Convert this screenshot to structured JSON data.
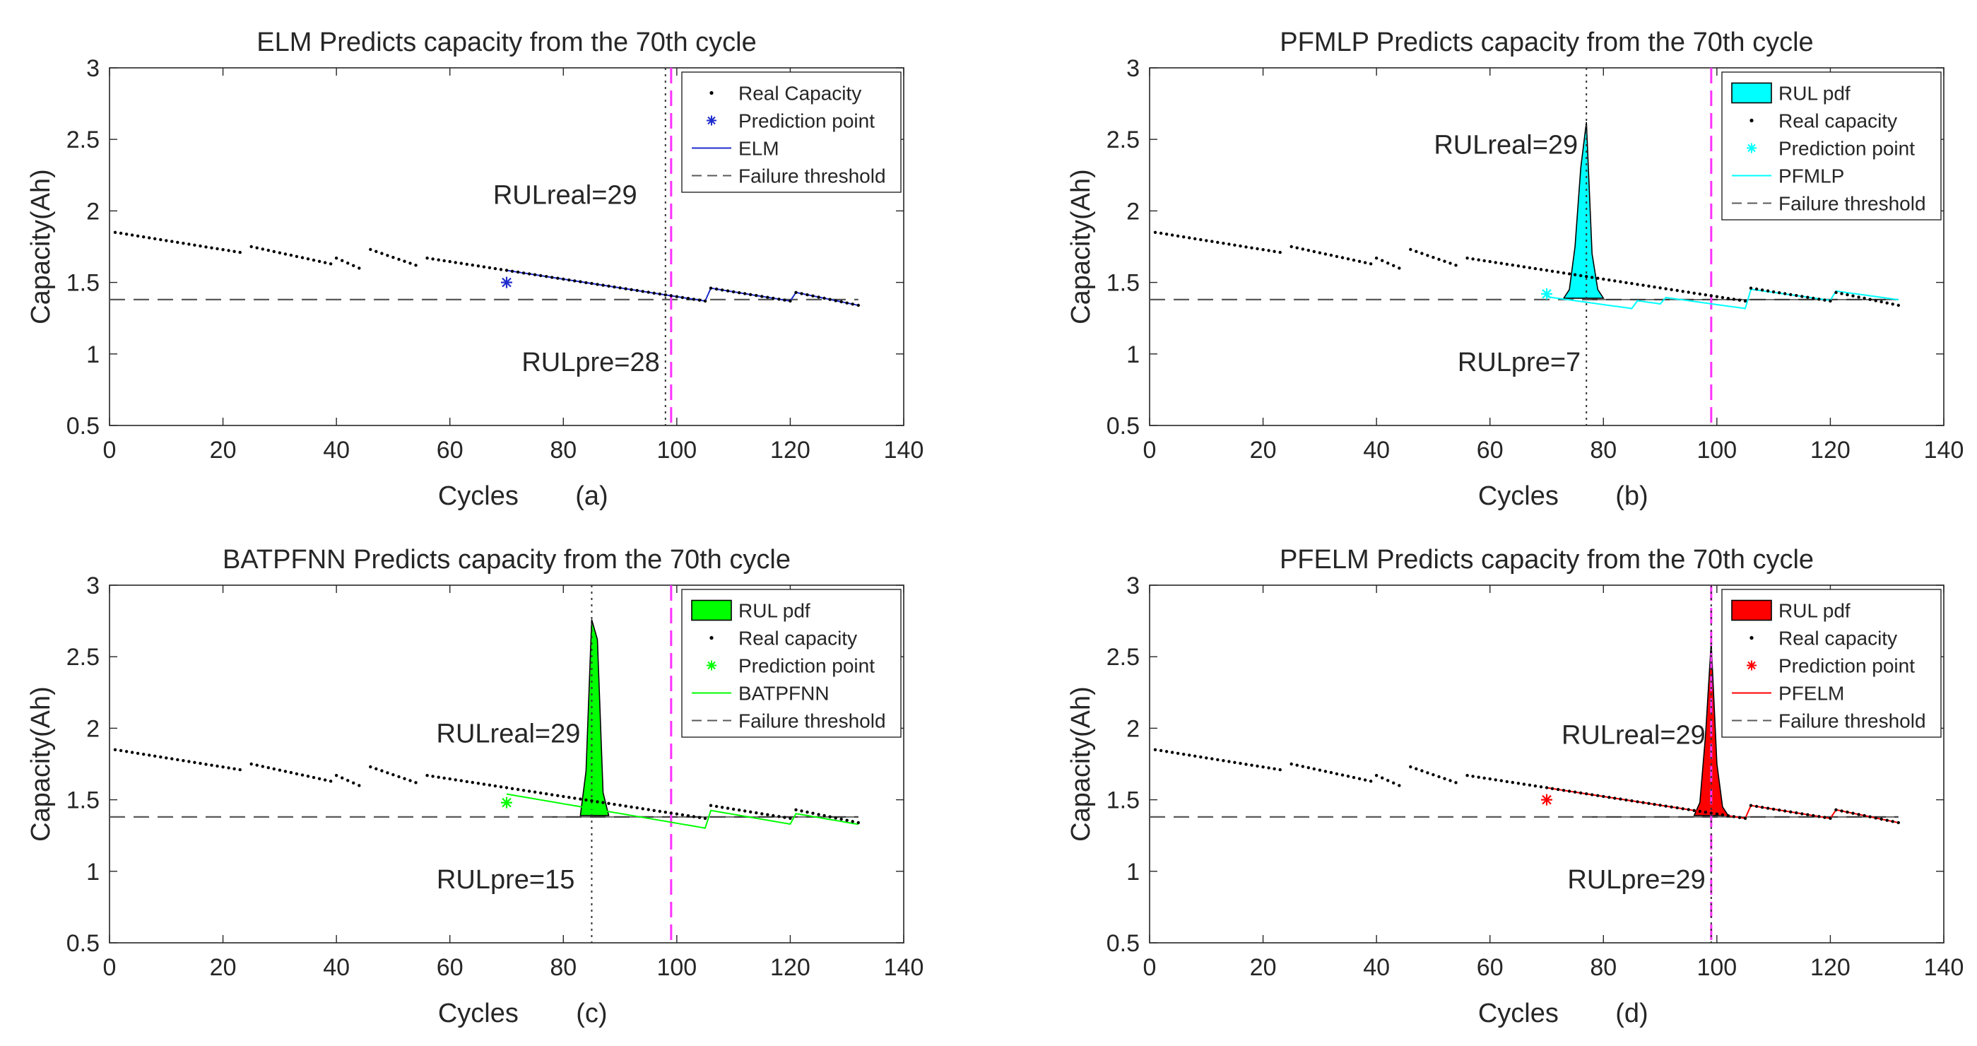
{
  "colors": {
    "text": "#262626",
    "axis": "#262626",
    "real_dots": "#000000",
    "threshold": "#595959",
    "real_rul_line": "#ff33ff",
    "pred_rul_line": "#333333",
    "elm": "#1f2ccc",
    "cyan": "#00ffff",
    "green": "#00ff00",
    "red": "#ff0000"
  },
  "chart_data": [
    {
      "id": "a",
      "type": "line",
      "title": "ELM Predicts capacity from the 70th cycle",
      "xlabel": "Cycles",
      "ylabel": "Capacity(Ah)",
      "panel_label": "(a)",
      "xlim": [
        0,
        140
      ],
      "ylim": [
        0.5,
        3
      ],
      "xticks": [
        "0",
        "20",
        "40",
        "60",
        "80",
        "100",
        "120",
        "140"
      ],
      "yticks": [
        "0.5",
        "1",
        "1.5",
        "2",
        "2.5",
        "3"
      ],
      "threshold": 1.38,
      "prediction_start": 70,
      "rul_real_cycle": 99,
      "rul_pred_cycle": 98,
      "annotations": {
        "rul_real": "RULreal=29",
        "rul_pred": "RULpre=28"
      },
      "prediction_point": {
        "x": 70,
        "y": 1.5
      },
      "pred_model": "elm",
      "pdf": null,
      "legend_position": "top-right",
      "legend": [
        "Real Capacity",
        "Prediction point",
        "ELM",
        "Failure threshold"
      ]
    },
    {
      "id": "b",
      "type": "line",
      "title": "PFMLP Predicts capacity from the 70th cycle",
      "xlabel": "Cycles",
      "ylabel": "Capacity(Ah)",
      "panel_label": "(b)",
      "xlim": [
        0,
        140
      ],
      "ylim": [
        0.5,
        3
      ],
      "xticks": [
        "0",
        "20",
        "40",
        "60",
        "80",
        "100",
        "120",
        "140"
      ],
      "yticks": [
        "0.5",
        "1",
        "1.5",
        "2",
        "2.5",
        "3"
      ],
      "threshold": 1.38,
      "prediction_start": 70,
      "rul_real_cycle": 99,
      "rul_pred_cycle": 77,
      "annotations": {
        "rul_real": "RULreal=29",
        "rul_pred": "RULpre=7"
      },
      "prediction_point": {
        "x": 70,
        "y": 1.42
      },
      "pred_model": "pfmlp",
      "pdf": {
        "x": [
          73,
          74,
          75,
          76,
          77,
          78,
          79,
          80
        ],
        "y": [
          1.39,
          1.45,
          1.75,
          2.3,
          2.62,
          1.7,
          1.45,
          1.39
        ]
      },
      "legend_position": "top-right",
      "legend": [
        "RUL pdf",
        "Real capacity",
        "Prediction point",
        "PFMLP",
        "Failure threshold"
      ]
    },
    {
      "id": "c",
      "type": "line",
      "title": "BATPFNN Predicts capacity from the 70th cycle",
      "xlabel": "Cycles",
      "ylabel": "Capacity(Ah)",
      "panel_label": "(c)",
      "xlim": [
        0,
        140
      ],
      "ylim": [
        0.5,
        3
      ],
      "xticks": [
        "0",
        "20",
        "40",
        "60",
        "80",
        "100",
        "120",
        "140"
      ],
      "yticks": [
        "0.5",
        "1",
        "1.5",
        "2",
        "2.5",
        "3"
      ],
      "threshold": 1.38,
      "prediction_start": 70,
      "rul_real_cycle": 99,
      "rul_pred_cycle": 85,
      "annotations": {
        "rul_real": "RULreal=29",
        "rul_pred": "RULpre=15"
      },
      "prediction_point": {
        "x": 70,
        "y": 1.48
      },
      "pred_model": "batpfnn",
      "pdf": {
        "x": [
          83,
          84,
          85,
          86,
          87,
          88
        ],
        "y": [
          1.39,
          1.7,
          2.76,
          2.62,
          1.55,
          1.39
        ]
      },
      "legend_position": "top-right",
      "legend": [
        "RUL pdf",
        "Real capacity",
        "Prediction point",
        "BATPFNN",
        "Failure threshold"
      ]
    },
    {
      "id": "d",
      "type": "line",
      "title": "PFELM Predicts capacity from the 70th cycle",
      "xlabel": "Cycles",
      "ylabel": "Capacity(Ah)",
      "panel_label": "(d)",
      "xlim": [
        0,
        140
      ],
      "ylim": [
        0.5,
        3
      ],
      "xticks": [
        "0",
        "20",
        "40",
        "60",
        "80",
        "100",
        "120",
        "140"
      ],
      "yticks": [
        "0.5",
        "1",
        "1.5",
        "2",
        "2.5",
        "3"
      ],
      "threshold": 1.38,
      "prediction_start": 70,
      "rul_real_cycle": 99,
      "rul_pred_cycle": 99,
      "annotations": {
        "rul_real": "RULreal=29",
        "rul_pred": "RULpre=29"
      },
      "prediction_point": {
        "x": 70,
        "y": 1.5
      },
      "pred_model": "pfelm",
      "pdf": {
        "x": [
          96,
          97,
          98,
          99,
          100,
          101,
          102
        ],
        "y": [
          1.39,
          1.48,
          1.95,
          2.6,
          1.75,
          1.45,
          1.39
        ]
      },
      "legend_position": "top-right",
      "legend": [
        "RUL pdf",
        "Real capacity",
        "Prediction point",
        "PFELM",
        "Failure threshold"
      ]
    }
  ]
}
